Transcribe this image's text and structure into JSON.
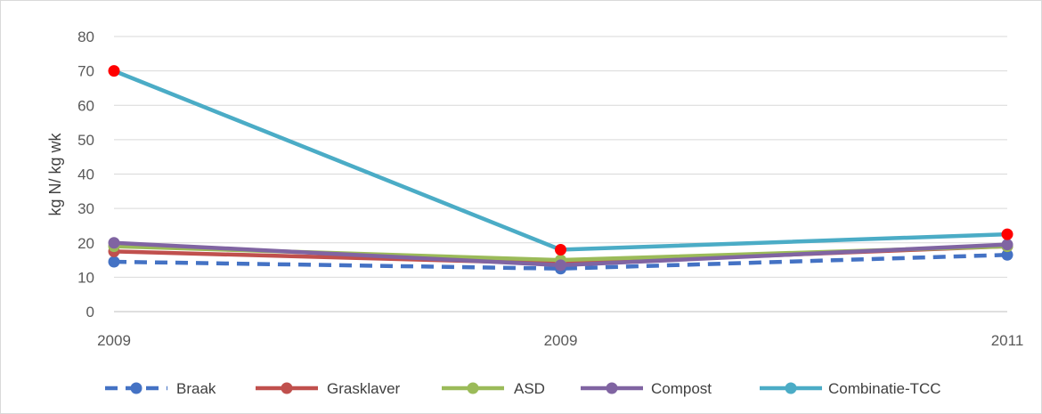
{
  "chart_data": {
    "type": "line",
    "title": "",
    "xlabel": "",
    "ylabel": "kg N/ kg wk",
    "categories": [
      "2009",
      "2009",
      "2011"
    ],
    "ylim": [
      0,
      80
    ],
    "yticks": [
      0,
      10,
      20,
      30,
      40,
      50,
      60,
      70,
      80
    ],
    "grid": true,
    "legend_position": "bottom",
    "series": [
      {
        "name": "Braak",
        "values": [
          14.5,
          12.5,
          16.5
        ],
        "color": "#4472c4",
        "dashed": true
      },
      {
        "name": "Grasklaver",
        "values": [
          17.5,
          14,
          19
        ],
        "color": "#c0504d",
        "dashed": false
      },
      {
        "name": "ASD",
        "values": [
          19,
          15,
          19
        ],
        "color": "#9bbb59",
        "dashed": false
      },
      {
        "name": "Compost",
        "values": [
          20,
          13.5,
          19.5
        ],
        "color": "#8064a2",
        "dashed": false
      },
      {
        "name": "Combinatie-TCC",
        "values": [
          70,
          18,
          22.5
        ],
        "color": "#4bacc6",
        "dashed": false
      }
    ],
    "highlight_markers": [
      {
        "series": "Combinatie-TCC",
        "index": 0,
        "color": "#ff0000"
      },
      {
        "series": "Combinatie-TCC",
        "index": 1,
        "color": "#ff0000"
      },
      {
        "series": "Combinatie-TCC",
        "index": 2,
        "color": "#ff0000"
      }
    ]
  }
}
